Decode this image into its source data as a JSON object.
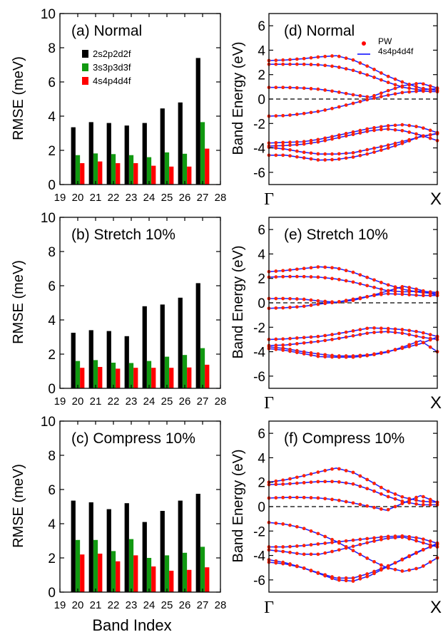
{
  "figure": {
    "left_ylabel": "RMSE (meV)",
    "right_ylabel": "Band Energy (eV)",
    "bottom_xlabel": "Band Index",
    "k_start_label": "Γ",
    "k_end_label": "X"
  },
  "chart_data": [
    {
      "type": "bar",
      "panel": "a",
      "title": "(a) Normal",
      "xlabel": "",
      "ylabel": "RMSE (meV)",
      "categories": [
        "20",
        "21",
        "22",
        "23",
        "24",
        "25",
        "26",
        "27"
      ],
      "x_ticks": [
        "19",
        "20",
        "21",
        "22",
        "23",
        "24",
        "25",
        "26",
        "27",
        "28"
      ],
      "xlim": [
        19,
        28
      ],
      "ylim": [
        0,
        10
      ],
      "y_ticks": [
        "0",
        "2",
        "4",
        "6",
        "8",
        "10"
      ],
      "legend_position": "upper-left",
      "series": [
        {
          "name": "2s2p2d2f",
          "color": "#000000",
          "values": [
            3.35,
            3.65,
            3.6,
            3.45,
            3.6,
            4.45,
            4.8,
            7.4
          ]
        },
        {
          "name": "3s3p3d3f",
          "color": "#119911",
          "values": [
            1.72,
            1.82,
            1.78,
            1.72,
            1.6,
            1.88,
            1.8,
            3.65
          ]
        },
        {
          "name": "4s4p4d4f",
          "color": "#ff0000",
          "values": [
            1.25,
            1.35,
            1.25,
            1.25,
            1.1,
            1.05,
            1.05,
            2.1
          ]
        }
      ]
    },
    {
      "type": "bar",
      "panel": "b",
      "title": "(b) Stretch 10%",
      "xlabel": "",
      "ylabel": "RMSE (meV)",
      "categories": [
        "20",
        "21",
        "22",
        "23",
        "24",
        "25",
        "26",
        "27"
      ],
      "x_ticks": [
        "19",
        "20",
        "21",
        "22",
        "23",
        "24",
        "25",
        "26",
        "27",
        "28"
      ],
      "xlim": [
        19,
        28
      ],
      "ylim": [
        0,
        10
      ],
      "y_ticks": [
        "0",
        "2",
        "4",
        "6",
        "8",
        "10"
      ],
      "series": [
        {
          "name": "2s2p2d2f",
          "color": "#000000",
          "values": [
            3.25,
            3.4,
            3.35,
            3.05,
            4.8,
            4.9,
            5.3,
            6.15
          ]
        },
        {
          "name": "3s3p3d3f",
          "color": "#119911",
          "values": [
            1.6,
            1.65,
            1.5,
            1.48,
            1.6,
            1.85,
            1.95,
            2.35
          ]
        },
        {
          "name": "4s4p4d4f",
          "color": "#ff0000",
          "values": [
            1.2,
            1.25,
            1.15,
            1.2,
            1.2,
            1.2,
            1.22,
            1.38
          ]
        }
      ]
    },
    {
      "type": "bar",
      "panel": "c",
      "title": "(c) Compress 10%",
      "xlabel": "Band Index",
      "ylabel": "RMSE (meV)",
      "categories": [
        "20",
        "21",
        "22",
        "23",
        "24",
        "25",
        "26",
        "27"
      ],
      "x_ticks": [
        "19",
        "20",
        "21",
        "22",
        "23",
        "24",
        "25",
        "26",
        "27",
        "28"
      ],
      "xlim": [
        19,
        28
      ],
      "ylim": [
        0,
        10
      ],
      "y_ticks": [
        "0",
        "2",
        "4",
        "6",
        "8",
        "10"
      ],
      "series": [
        {
          "name": "2s2p2d2f",
          "color": "#000000",
          "values": [
            5.35,
            5.25,
            4.85,
            5.2,
            4.1,
            4.75,
            5.35,
            5.75
          ]
        },
        {
          "name": "3s3p3d3f",
          "color": "#119911",
          "values": [
            3.05,
            3.05,
            2.4,
            3.1,
            2.0,
            2.15,
            2.3,
            2.65
          ]
        },
        {
          "name": "4s4p4d4f",
          "color": "#ff0000",
          "values": [
            2.2,
            2.25,
            1.8,
            2.15,
            1.5,
            1.25,
            1.3,
            1.45
          ]
        }
      ]
    },
    {
      "type": "line",
      "panel": "d",
      "title": "(d) Normal",
      "ylabel": "Band Energy (eV)",
      "x_tick_labels": [
        "Γ",
        "X"
      ],
      "xlim": [
        0,
        1
      ],
      "ylim": [
        -7,
        7
      ],
      "y_ticks": [
        "-6",
        "-4",
        "-2",
        "0",
        "2",
        "4",
        "6"
      ],
      "fermi_level": 0,
      "legend_position": "top-right",
      "series_styles": [
        {
          "name": "PW",
          "marker": "circle",
          "color": "#ff0000"
        },
        {
          "name": "4s4p4d4f",
          "line": "solid",
          "color": "#0000ff"
        }
      ],
      "x": [
        0,
        0.1,
        0.2,
        0.3,
        0.4,
        0.5,
        0.6,
        0.7,
        0.8,
        0.9,
        1.0
      ],
      "bands": [
        [
          3.15,
          3.2,
          3.3,
          3.45,
          3.55,
          3.2,
          2.6,
          1.9,
          1.35,
          0.9,
          0.7
        ],
        [
          2.85,
          2.85,
          2.85,
          2.8,
          2.65,
          2.35,
          1.9,
          1.4,
          0.95,
          0.75,
          0.85
        ],
        [
          0.95,
          0.95,
          0.9,
          0.8,
          0.6,
          0.35,
          0.15,
          0.65,
          1.1,
          1.3,
          0.9
        ],
        [
          -1.4,
          -1.35,
          -1.2,
          -1.0,
          -0.7,
          -0.35,
          0.0,
          0.3,
          0.55,
          0.65,
          0.6
        ],
        [
          -3.6,
          -3.55,
          -3.5,
          -3.3,
          -3.0,
          -2.7,
          -2.4,
          -2.2,
          -2.1,
          -2.3,
          -2.75
        ],
        [
          -3.85,
          -3.8,
          -3.7,
          -3.5,
          -3.2,
          -2.9,
          -2.6,
          -2.45,
          -2.6,
          -2.95,
          -3.4
        ],
        [
          -3.95,
          -4.1,
          -4.35,
          -4.5,
          -4.5,
          -4.4,
          -4.1,
          -3.8,
          -3.45,
          -3.1,
          -2.8
        ],
        [
          -4.6,
          -4.6,
          -4.8,
          -5.0,
          -4.95,
          -4.75,
          -4.45,
          -4.05,
          -3.6,
          -3.05,
          -2.85
        ]
      ]
    },
    {
      "type": "line",
      "panel": "e",
      "title": "(e) Stretch 10%",
      "ylabel": "Band Energy (eV)",
      "x_tick_labels": [
        "Γ",
        "X"
      ],
      "xlim": [
        0,
        1
      ],
      "ylim": [
        -7,
        7
      ],
      "y_ticks": [
        "-6",
        "-4",
        "-2",
        "0",
        "2",
        "4",
        "6"
      ],
      "fermi_level": 0,
      "x": [
        0,
        0.1,
        0.2,
        0.3,
        0.4,
        0.5,
        0.6,
        0.7,
        0.8,
        0.9,
        1.0
      ],
      "bands": [
        [
          2.55,
          2.65,
          2.8,
          2.95,
          2.85,
          2.5,
          2.0,
          1.5,
          1.1,
          0.85,
          0.75
        ],
        [
          2.1,
          2.15,
          2.15,
          2.1,
          1.95,
          1.7,
          1.35,
          1.0,
          0.9,
          0.95,
          0.85
        ],
        [
          0.35,
          0.35,
          0.3,
          0.15,
          0.05,
          0.2,
          0.55,
          0.95,
          1.35,
          1.05,
          0.6
        ],
        [
          -0.45,
          -0.4,
          -0.3,
          -0.1,
          0.05,
          0.3,
          0.55,
          0.75,
          0.7,
          0.6,
          0.6
        ],
        [
          -3.0,
          -2.95,
          -2.85,
          -2.75,
          -2.55,
          -2.3,
          -2.05,
          -2.1,
          -2.2,
          -2.4,
          -2.75
        ],
        [
          -3.5,
          -3.45,
          -3.3,
          -3.15,
          -2.95,
          -2.7,
          -2.45,
          -2.35,
          -2.5,
          -2.8,
          -3.0
        ],
        [
          -3.6,
          -3.75,
          -4.0,
          -4.2,
          -4.35,
          -4.35,
          -4.25,
          -4.0,
          -3.7,
          -3.35,
          -2.8
        ],
        [
          -3.75,
          -3.9,
          -4.15,
          -4.4,
          -4.45,
          -4.45,
          -4.3,
          -4.05,
          -3.6,
          -3.1,
          -4.0
        ]
      ]
    },
    {
      "type": "line",
      "panel": "f",
      "title": "(f) Compress 10%",
      "ylabel": "Band Energy (eV)",
      "x_tick_labels": [
        "Γ",
        "X"
      ],
      "xlim": [
        0,
        1
      ],
      "ylim": [
        -7,
        7
      ],
      "y_ticks": [
        "-6",
        "-4",
        "-2",
        "0",
        "2",
        "4",
        "6"
      ],
      "fermi_level": 0,
      "x": [
        0,
        0.1,
        0.2,
        0.3,
        0.4,
        0.5,
        0.6,
        0.7,
        0.8,
        0.9,
        1.0
      ],
      "bands": [
        [
          2.0,
          2.2,
          2.5,
          2.85,
          3.15,
          2.8,
          2.1,
          1.3,
          0.75,
          0.45,
          0.35
        ],
        [
          1.8,
          1.85,
          1.95,
          2.05,
          2.05,
          1.85,
          1.4,
          0.85,
          0.4,
          0.15,
          0.15
        ],
        [
          0.7,
          0.75,
          0.75,
          0.7,
          0.55,
          0.3,
          0.0,
          -0.3,
          0.3,
          0.9,
          0.35
        ],
        [
          -1.3,
          -1.45,
          -1.75,
          -2.25,
          -2.85,
          -3.6,
          -4.35,
          -5.0,
          -5.3,
          -5.0,
          -4.2
        ],
        [
          -3.3,
          -3.3,
          -3.2,
          -3.05,
          -2.9,
          -2.75,
          -2.6,
          -2.45,
          -2.4,
          -2.6,
          -3.0
        ],
        [
          -3.55,
          -3.7,
          -3.9,
          -3.9,
          -3.6,
          -3.25,
          -2.9,
          -2.6,
          -2.5,
          -2.9,
          -3.3
        ],
        [
          -4.35,
          -4.6,
          -5.0,
          -5.5,
          -6.0,
          -6.1,
          -5.65,
          -4.95,
          -4.25,
          -3.6,
          -3.1
        ],
        [
          -4.55,
          -4.7,
          -5.0,
          -5.45,
          -5.85,
          -5.85,
          -5.45,
          -4.9,
          -4.3,
          -3.65,
          -3.0
        ]
      ]
    }
  ]
}
